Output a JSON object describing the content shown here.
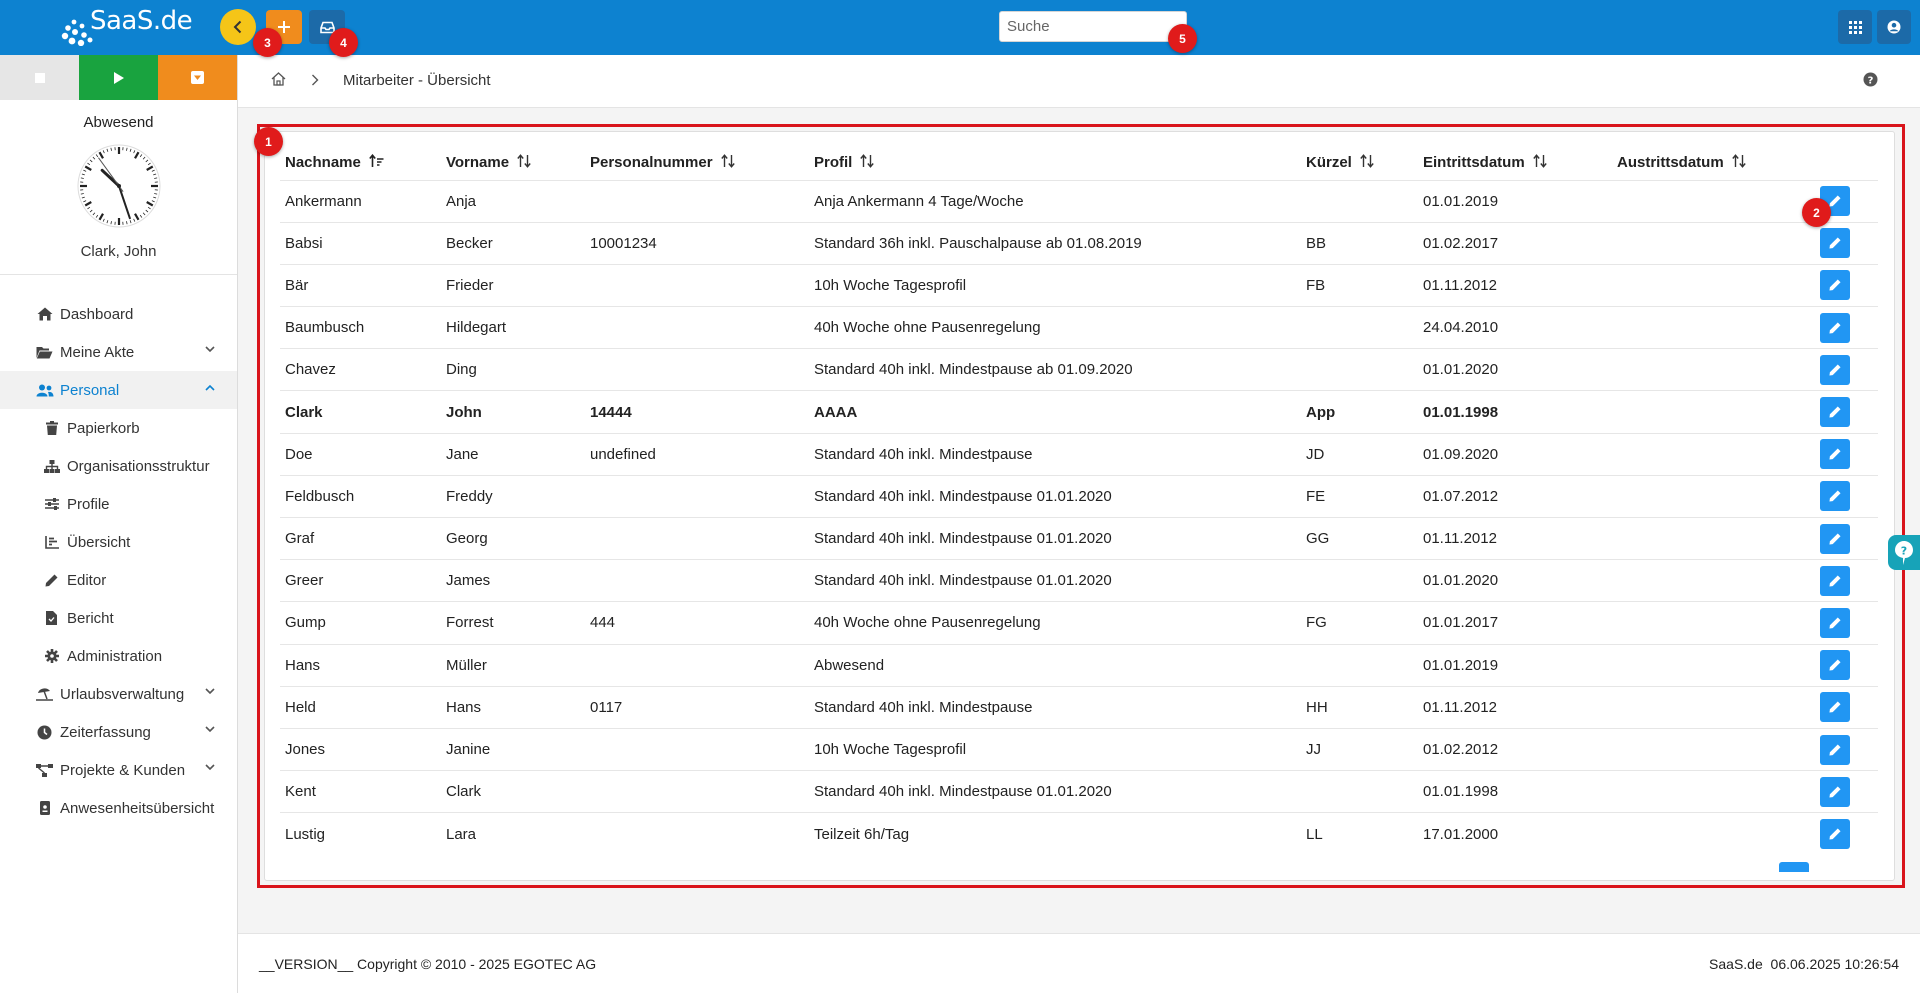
{
  "header": {
    "logo_text": "SaaS.de",
    "search_placeholder": "Suche",
    "markers": {
      "back": "3",
      "inbox": "4",
      "search": "5",
      "table": "1",
      "edit": "2"
    }
  },
  "sidebar": {
    "status": "Abwesend",
    "user": "Clark, John",
    "clock": {
      "hour": 10,
      "minute": 26,
      "second": 54
    },
    "items": [
      {
        "label": "Dashboard",
        "icon": "home-icon"
      },
      {
        "label": "Meine Akte",
        "icon": "folder-open-icon"
      },
      {
        "label": "Personal",
        "icon": "users-icon"
      },
      {
        "label": "Papierkorb",
        "icon": "trash-icon"
      },
      {
        "label": "Organisationsstruktur",
        "icon": "sitemap-icon"
      },
      {
        "label": "Profile",
        "icon": "sliders-icon"
      },
      {
        "label": "Übersicht",
        "icon": "chart-icon"
      },
      {
        "label": "Editor",
        "icon": "pencil-icon"
      },
      {
        "label": "Bericht",
        "icon": "file-icon"
      },
      {
        "label": "Administration",
        "icon": "gear-icon"
      },
      {
        "label": "Urlaubsverwaltung",
        "icon": "umbrella-icon"
      },
      {
        "label": "Zeiterfassung",
        "icon": "clock-icon"
      },
      {
        "label": "Projekte & Kunden",
        "icon": "project-diagram-icon"
      },
      {
        "label": "Anwesenheitsübersicht",
        "icon": "id-badge-icon"
      }
    ]
  },
  "breadcrumb": {
    "title": "Mitarbeiter - Übersicht"
  },
  "table": {
    "columns": [
      "Nachname",
      "Vorname",
      "Personalnummer",
      "Profil",
      "Kürzel",
      "Eintrittsdatum",
      "Austrittsdatum"
    ],
    "rows": [
      [
        "Ankermann",
        "Anja",
        "",
        "Anja Ankermann 4 Tage/Woche",
        "",
        "01.01.2019",
        ""
      ],
      [
        "Babsi",
        "Becker",
        "10001234",
        "Standard 36h inkl. Pauschalpause ab 01.08.2019",
        "BB",
        "01.02.2017",
        ""
      ],
      [
        "Bär",
        "Frieder",
        "",
        "10h Woche Tagesprofil",
        "FB",
        "01.11.2012",
        ""
      ],
      [
        "Baumbusch",
        "Hildegart",
        "",
        "40h Woche ohne Pausenregelung",
        "",
        "24.04.2010",
        ""
      ],
      [
        "Chavez",
        "Ding",
        "",
        "Standard 40h inkl. Mindestpause ab 01.09.2020",
        "",
        "01.01.2020",
        ""
      ],
      [
        "Clark",
        "John",
        "14444",
        "AAAA",
        "App",
        "01.01.1998",
        ""
      ],
      [
        "Doe",
        "Jane",
        "undefined",
        "Standard 40h inkl. Mindestpause",
        "JD",
        "01.09.2020",
        ""
      ],
      [
        "Feldbusch",
        "Freddy",
        "",
        "Standard 40h inkl. Mindestpause 01.01.2020",
        "FE",
        "01.07.2012",
        ""
      ],
      [
        "Graf",
        "Georg",
        "",
        "Standard 40h inkl. Mindestpause 01.01.2020",
        "GG",
        "01.11.2012",
        ""
      ],
      [
        "Greer",
        "James",
        "",
        "Standard 40h inkl. Mindestpause 01.01.2020",
        "",
        "01.01.2020",
        ""
      ],
      [
        "Gump",
        "Forrest",
        "444",
        "40h Woche ohne Pausenregelung",
        "FG",
        "01.01.2017",
        ""
      ],
      [
        "Hans",
        "Müller",
        "",
        "Abwesend",
        "",
        "01.01.2019",
        ""
      ],
      [
        "Held",
        "Hans",
        "0117",
        "Standard 40h inkl. Mindestpause",
        "HH",
        "01.11.2012",
        ""
      ],
      [
        "Jones",
        "Janine",
        "",
        "10h Woche Tagesprofil",
        "JJ",
        "01.02.2012",
        ""
      ],
      [
        "Kent",
        "Clark",
        "",
        "Standard 40h inkl. Mindestpause 01.01.2020",
        "",
        "01.01.1998",
        ""
      ],
      [
        "Lustig",
        "Lara",
        "",
        "Teilzeit 6h/Tag",
        "LL",
        "17.01.2000",
        ""
      ]
    ],
    "highlighted_row": 5
  },
  "footer": {
    "left": "__VERSION__ Copyright © 2010 - 2025 EGOTEC AG",
    "right": "SaaS.de  06.06.2025 10:26:54"
  },
  "colors": {
    "primary": "#0d82d0",
    "accent_orange": "#f08c1d",
    "accent_green": "#19a33f",
    "accent_yellow": "#f5c518",
    "edit_button": "#2196f3",
    "marker_red": "#e01b1b"
  }
}
